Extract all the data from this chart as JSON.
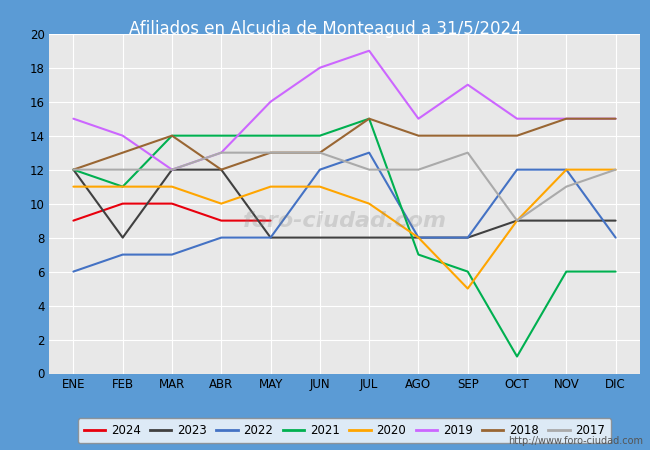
{
  "title": "Afiliados en Alcudia de Monteagud a 31/5/2024",
  "title_color": "#ffffff",
  "title_bg": "#4c7db5",
  "xlabel": "",
  "ylabel": "",
  "ylim": [
    0,
    20
  ],
  "yticks": [
    0,
    2,
    4,
    6,
    8,
    10,
    12,
    14,
    16,
    18,
    20
  ],
  "months": [
    "ENE",
    "FEB",
    "MAR",
    "ABR",
    "MAY",
    "JUN",
    "JUL",
    "AGO",
    "SEP",
    "OCT",
    "NOV",
    "DIC"
  ],
  "watermark": "foro-ciudad.com",
  "url": "http://www.foro-ciudad.com",
  "series": {
    "2024": {
      "color": "#e8000d",
      "data": [
        9,
        10,
        10,
        9,
        9,
        null,
        null,
        null,
        null,
        null,
        null,
        null
      ]
    },
    "2023": {
      "color": "#404040",
      "data": [
        12,
        8,
        12,
        12,
        8,
        8,
        8,
        8,
        8,
        9,
        9,
        9
      ]
    },
    "2022": {
      "color": "#4472c4",
      "data": [
        6,
        7,
        7,
        8,
        8,
        12,
        13,
        8,
        8,
        12,
        12,
        8
      ]
    },
    "2021": {
      "color": "#00b050",
      "data": [
        12,
        11,
        14,
        14,
        14,
        14,
        15,
        7,
        6,
        1,
        6,
        6
      ]
    },
    "2020": {
      "color": "#ffa500",
      "data": [
        11,
        11,
        11,
        10,
        11,
        11,
        10,
        8,
        5,
        9,
        12,
        12
      ]
    },
    "2019": {
      "color": "#cc66ff",
      "data": [
        15,
        14,
        12,
        13,
        16,
        18,
        19,
        15,
        17,
        15,
        15,
        15
      ]
    },
    "2018": {
      "color": "#996633",
      "data": [
        12,
        13,
        14,
        12,
        13,
        13,
        15,
        14,
        14,
        14,
        15,
        15
      ]
    },
    "2017": {
      "color": "#aaaaaa",
      "data": [
        12,
        12,
        12,
        13,
        13,
        13,
        12,
        12,
        13,
        9,
        11,
        12
      ]
    }
  },
  "legend_order": [
    "2024",
    "2023",
    "2022",
    "2021",
    "2020",
    "2019",
    "2018",
    "2017"
  ],
  "fig_bg": "#5b9bd5",
  "plot_bg": "#e8e8e8",
  "grid_color": "#ffffff"
}
